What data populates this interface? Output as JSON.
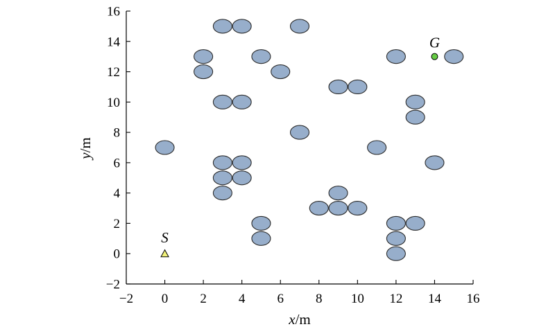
{
  "chart_data": {
    "type": "scatter",
    "title": "",
    "xlabel": {
      "var": "x",
      "unit": "/m"
    },
    "ylabel": {
      "var": "y",
      "unit": "/m"
    },
    "xlim": [
      -2,
      16
    ],
    "ylim": [
      -2,
      16
    ],
    "xticks": [
      -2,
      0,
      2,
      4,
      6,
      8,
      10,
      12,
      14,
      16
    ],
    "yticks": [
      -2,
      0,
      2,
      4,
      6,
      8,
      10,
      12,
      14,
      16
    ],
    "xtick_labels": [
      "−2",
      "0",
      "2",
      "4",
      "6",
      "8",
      "10",
      "12",
      "14",
      "16"
    ],
    "ytick_labels": [
      "−2",
      "0",
      "2",
      "4",
      "6",
      "8",
      "10",
      "12",
      "14",
      "16"
    ],
    "grid": false,
    "colors": {
      "obstacle": "#97AECB",
      "start": "#F2F27A",
      "goal": "#66CC44"
    },
    "obstacles": [
      [
        0,
        7
      ],
      [
        2,
        13
      ],
      [
        2,
        12
      ],
      [
        3,
        15
      ],
      [
        4,
        15
      ],
      [
        7,
        15
      ],
      [
        5,
        13
      ],
      [
        6,
        12
      ],
      [
        3,
        10
      ],
      [
        4,
        10
      ],
      [
        7,
        8
      ],
      [
        3,
        6
      ],
      [
        4,
        6
      ],
      [
        3,
        5
      ],
      [
        4,
        5
      ],
      [
        3,
        4
      ],
      [
        5,
        2
      ],
      [
        5,
        1
      ],
      [
        8,
        3
      ],
      [
        9,
        4
      ],
      [
        9,
        3
      ],
      [
        10,
        3
      ],
      [
        9,
        11
      ],
      [
        10,
        11
      ],
      [
        11,
        7
      ],
      [
        12,
        13
      ],
      [
        13,
        10
      ],
      [
        13,
        9
      ],
      [
        14,
        6
      ],
      [
        15,
        13
      ],
      [
        12,
        2
      ],
      [
        13,
        2
      ],
      [
        12,
        1
      ],
      [
        12,
        0
      ]
    ],
    "start": {
      "label": "S",
      "x": 0,
      "y": 0,
      "marker": "triangle"
    },
    "goal": {
      "label": "G",
      "x": 14,
      "y": 13,
      "marker": "circle"
    }
  }
}
